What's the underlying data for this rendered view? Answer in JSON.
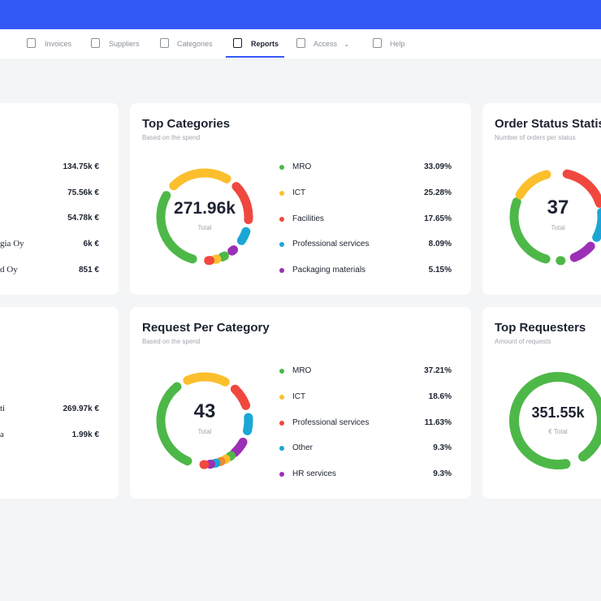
{
  "nav": {
    "items": [
      "Invoices",
      "Suppliers",
      "Categories",
      "Reports",
      "Access",
      "Help"
    ]
  },
  "left_top": {
    "rows": [
      {
        "value": "134.75k €"
      },
      {
        "value": "75.56k €"
      },
      {
        "value": "54.78k €"
      },
      {
        "label": "gia Oy",
        "value": "6k €"
      },
      {
        "label": "d Oy",
        "value": "851 €"
      }
    ]
  },
  "left_bottom": {
    "rows": [
      {
        "label": "ti",
        "value": "269.97k €"
      },
      {
        "label": "a",
        "value": "1.99k €"
      }
    ]
  },
  "top_categories": {
    "title": "Top Categories",
    "subtitle": "Based on the spend",
    "center_value": "271.96k",
    "center_label": "Total",
    "legend": [
      {
        "label": "MRO",
        "value": "33.09%",
        "color": "#4db848"
      },
      {
        "label": "ICT",
        "value": "25.28%",
        "color": "#fbbf2d"
      },
      {
        "label": "Facilities",
        "value": "17.65%",
        "color": "#f0483e"
      },
      {
        "label": "Professional services",
        "value": "8.09%",
        "color": "#1aa7d6"
      },
      {
        "label": "Packaging materials",
        "value": "5.15%",
        "color": "#9b2fb5"
      }
    ]
  },
  "request_per_category": {
    "title": "Request Per Category",
    "subtitle": "Based on the spend",
    "center_value": "43",
    "center_label": "Total",
    "legend": [
      {
        "label": "MRO",
        "value": "37.21%",
        "color": "#4db848"
      },
      {
        "label": "ICT",
        "value": "18.6%",
        "color": "#fbbf2d"
      },
      {
        "label": "Professional services",
        "value": "11.63%",
        "color": "#f0483e"
      },
      {
        "label": "Other",
        "value": "9.3%",
        "color": "#1aa7d6"
      },
      {
        "label": "HR services",
        "value": "9.3%",
        "color": "#9b2fb5"
      }
    ]
  },
  "order_status": {
    "title": "Order Status Statis",
    "subtitle": "Number of orders per status",
    "center_value": "37",
    "center_label": "Total"
  },
  "top_requesters": {
    "title": "Top Requesters",
    "subtitle": "Amount of requests",
    "center_value": "351.55k",
    "center_label": "€ Total"
  }
}
